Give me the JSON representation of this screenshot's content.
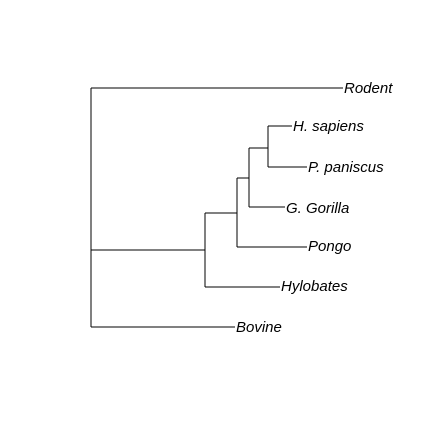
{
  "tree": {
    "leaves": [
      {
        "id": "rodent",
        "label": "Rodent"
      },
      {
        "id": "h-sapiens",
        "label": "H. sapiens"
      },
      {
        "id": "p-paniscus",
        "label": "P. paniscus"
      },
      {
        "id": "g-gorilla",
        "label": "G. Gorilla"
      },
      {
        "id": "pongo",
        "label": "Pongo"
      },
      {
        "id": "hylobates",
        "label": "Hylobates"
      },
      {
        "id": "bovine",
        "label": "Bovine"
      }
    ]
  }
}
